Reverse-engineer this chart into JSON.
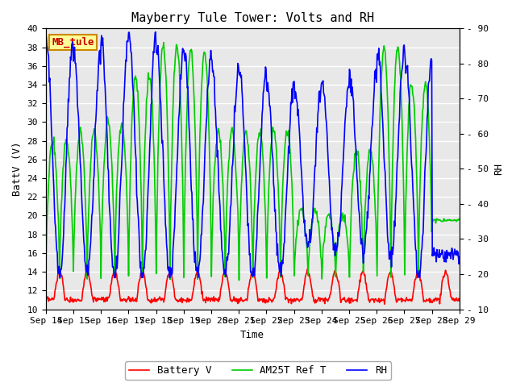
{
  "title": "Mayberry Tule Tower: Volts and RH",
  "xlabel": "Time",
  "ylabel_left": "BattV (V)",
  "ylabel_right": "RH",
  "station_label": "MB_tule",
  "ylim_left": [
    10,
    40
  ],
  "ylim_right": [
    10,
    90
  ],
  "xlim": [
    0,
    15
  ],
  "xtick_labels": [
    "Sep 14",
    "Sep 15",
    "Sep 16",
    "Sep 17",
    "Sep 18",
    "Sep 19",
    "Sep 20",
    "Sep 21",
    "Sep 22",
    "Sep 23",
    "Sep 24",
    "Sep 25",
    "Sep 26",
    "Sep 27",
    "Sep 28",
    "Sep 29"
  ],
  "bg_color": "#e8e8e8",
  "fig_bg_color": "#ffffff",
  "grid_color": "#ffffff",
  "battery_color": "#ff0000",
  "am25t_color": "#00cc00",
  "rh_color": "#0000ff",
  "line_width": 1.2,
  "font_family": "monospace",
  "font_size_title": 11,
  "font_size_ticks": 8,
  "font_size_label": 9,
  "font_size_legend": 9
}
